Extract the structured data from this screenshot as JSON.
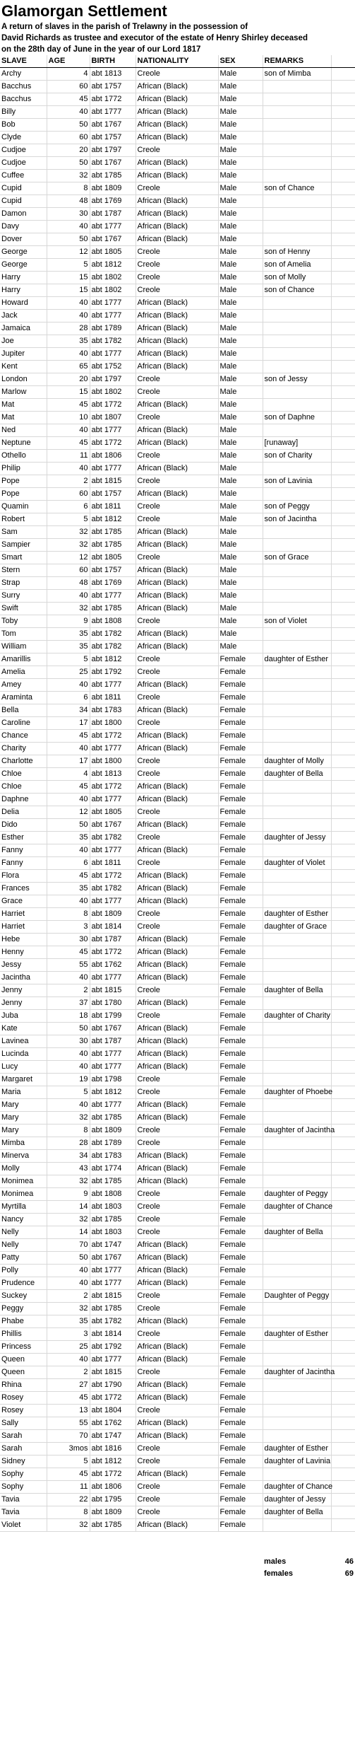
{
  "title": "Glamorgan Settlement",
  "subtitle_lines": [
    "A return of slaves in the parish of Trelawny in the possession of",
    "David Richards as trustee and executor of the estate of Henry Shirley deceased",
    "on the 28th day of June in the year of our Lord 1817"
  ],
  "columns": [
    "SLAVE",
    "AGE",
    "BIRTH",
    "NATIONALITY",
    "SEX",
    "REMARKS"
  ],
  "rows": [
    [
      "Archy",
      "4",
      "abt 1813",
      "Creole",
      "Male",
      "son of Mimba"
    ],
    [
      "Bacchus",
      "60",
      "abt 1757",
      "African (Black)",
      "Male",
      ""
    ],
    [
      "Bacchus",
      "45",
      "abt 1772",
      "African (Black)",
      "Male",
      ""
    ],
    [
      "Billy",
      "40",
      "abt 1777",
      "African (Black)",
      "Male",
      ""
    ],
    [
      "Bob",
      "50",
      "abt 1767",
      "African (Black)",
      "Male",
      ""
    ],
    [
      "Clyde",
      "60",
      "abt 1757",
      "African (Black)",
      "Male",
      ""
    ],
    [
      "Cudjoe",
      "20",
      "abt 1797",
      "Creole",
      "Male",
      ""
    ],
    [
      "Cudjoe",
      "50",
      "abt 1767",
      "African (Black)",
      "Male",
      ""
    ],
    [
      "Cuffee",
      "32",
      "abt 1785",
      "African (Black)",
      "Male",
      ""
    ],
    [
      "Cupid",
      "8",
      "abt 1809",
      "Creole",
      "Male",
      "son of Chance"
    ],
    [
      "Cupid",
      "48",
      "abt 1769",
      "African (Black)",
      "Male",
      ""
    ],
    [
      "Damon",
      "30",
      "abt 1787",
      "African (Black)",
      "Male",
      ""
    ],
    [
      "Davy",
      "40",
      "abt 1777",
      "African (Black)",
      "Male",
      ""
    ],
    [
      "Dover",
      "50",
      "abt 1767",
      "African (Black)",
      "Male",
      ""
    ],
    [
      "George",
      "12",
      "abt 1805",
      "Creole",
      "Male",
      "son of Henny"
    ],
    [
      "George",
      "5",
      "abt 1812",
      "Creole",
      "Male",
      "son of Amelia"
    ],
    [
      "Harry",
      "15",
      "abt 1802",
      "Creole",
      "Male",
      "son of Molly"
    ],
    [
      "Harry",
      "15",
      "abt 1802",
      "Creole",
      "Male",
      "son of Chance"
    ],
    [
      "Howard",
      "40",
      "abt 1777",
      "African (Black)",
      "Male",
      ""
    ],
    [
      "Jack",
      "40",
      "abt 1777",
      "African (Black)",
      "Male",
      ""
    ],
    [
      "Jamaica",
      "28",
      "abt 1789",
      "African (Black)",
      "Male",
      ""
    ],
    [
      "Joe",
      "35",
      "abt 1782",
      "African (Black)",
      "Male",
      ""
    ],
    [
      "Jupiter",
      "40",
      "abt 1777",
      "African (Black)",
      "Male",
      ""
    ],
    [
      "Kent",
      "65",
      "abt 1752",
      "African (Black)",
      "Male",
      ""
    ],
    [
      "London",
      "20",
      "abt 1797",
      "Creole",
      "Male",
      "son of Jessy"
    ],
    [
      "Marlow",
      "15",
      "abt 1802",
      "Creole",
      "Male",
      ""
    ],
    [
      "Mat",
      "45",
      "abt 1772",
      "African (Black)",
      "Male",
      ""
    ],
    [
      "Mat",
      "10",
      "abt 1807",
      "Creole",
      "Male",
      "son of Daphne"
    ],
    [
      "Ned",
      "40",
      "abt 1777",
      "African (Black)",
      "Male",
      ""
    ],
    [
      "Neptune",
      "45",
      "abt 1772",
      "African (Black)",
      "Male",
      "[runaway]"
    ],
    [
      "Othello",
      "11",
      "abt 1806",
      "Creole",
      "Male",
      "son of Charity"
    ],
    [
      "Philip",
      "40",
      "abt 1777",
      "African (Black)",
      "Male",
      ""
    ],
    [
      "Pope",
      "2",
      "abt 1815",
      "Creole",
      "Male",
      "son of Lavinia"
    ],
    [
      "Pope",
      "60",
      "abt 1757",
      "African (Black)",
      "Male",
      ""
    ],
    [
      "Quamin",
      "6",
      "abt 1811",
      "Creole",
      "Male",
      "son of Peggy"
    ],
    [
      "Robert",
      "5",
      "abt 1812",
      "Creole",
      "Male",
      "son of Jacintha"
    ],
    [
      "Sam",
      "32",
      "abt 1785",
      "African (Black)",
      "Male",
      ""
    ],
    [
      "Sampier",
      "32",
      "abt 1785",
      "African (Black)",
      "Male",
      ""
    ],
    [
      "Smart",
      "12",
      "abt 1805",
      "Creole",
      "Male",
      "son of Grace"
    ],
    [
      "Stern",
      "60",
      "abt 1757",
      "African (Black)",
      "Male",
      ""
    ],
    [
      "Strap",
      "48",
      "abt 1769",
      "African (Black)",
      "Male",
      ""
    ],
    [
      "Surry",
      "40",
      "abt 1777",
      "African (Black)",
      "Male",
      ""
    ],
    [
      "Swift",
      "32",
      "abt 1785",
      "African (Black)",
      "Male",
      ""
    ],
    [
      "Toby",
      "9",
      "abt 1808",
      "Creole",
      "Male",
      "son of Violet"
    ],
    [
      "Tom",
      "35",
      "abt 1782",
      "African (Black)",
      "Male",
      ""
    ],
    [
      "William",
      "35",
      "abt 1782",
      "African (Black)",
      "Male",
      ""
    ],
    [
      "Amarillis",
      "5",
      "abt 1812",
      "Creole",
      "Female",
      "daughter of Esther"
    ],
    [
      "Amelia",
      "25",
      "abt 1792",
      "Creole",
      "Female",
      ""
    ],
    [
      "Amey",
      "40",
      "abt 1777",
      "African (Black)",
      "Female",
      ""
    ],
    [
      "Araminta",
      "6",
      "abt 1811",
      "Creole",
      "Female",
      ""
    ],
    [
      "Bella",
      "34",
      "abt 1783",
      "African (Black)",
      "Female",
      ""
    ],
    [
      "Caroline",
      "17",
      "abt 1800",
      "Creole",
      "Female",
      ""
    ],
    [
      "Chance",
      "45",
      "abt 1772",
      "African (Black)",
      "Female",
      ""
    ],
    [
      "Charity",
      "40",
      "abt 1777",
      "African (Black)",
      "Female",
      ""
    ],
    [
      "Charlotte",
      "17",
      "abt 1800",
      "Creole",
      "Female",
      "daughter of Molly"
    ],
    [
      "Chloe",
      "4",
      "abt 1813",
      "Creole",
      "Female",
      "daughter of Bella"
    ],
    [
      "Chloe",
      "45",
      "abt 1772",
      "African (Black)",
      "Female",
      ""
    ],
    [
      "Daphne",
      "40",
      "abt 1777",
      "African (Black)",
      "Female",
      ""
    ],
    [
      "Delia",
      "12",
      "abt 1805",
      "Creole",
      "Female",
      ""
    ],
    [
      "Dido",
      "50",
      "abt 1767",
      "African (Black)",
      "Female",
      ""
    ],
    [
      "Esther",
      "35",
      "abt 1782",
      "Creole",
      "Female",
      "daughter of Jessy"
    ],
    [
      "Fanny",
      "40",
      "abt 1777",
      "African (Black)",
      "Female",
      ""
    ],
    [
      "Fanny",
      "6",
      "abt 1811",
      "Creole",
      "Female",
      "daughter of Violet"
    ],
    [
      "Flora",
      "45",
      "abt 1772",
      "African (Black)",
      "Female",
      ""
    ],
    [
      "Frances",
      "35",
      "abt 1782",
      "African (Black)",
      "Female",
      ""
    ],
    [
      "Grace",
      "40",
      "abt 1777",
      "African (Black)",
      "Female",
      ""
    ],
    [
      "Harriet",
      "8",
      "abt 1809",
      "Creole",
      "Female",
      "daughter of Esther"
    ],
    [
      "Harriet",
      "3",
      "abt 1814",
      "Creole",
      "Female",
      "daughter of Grace"
    ],
    [
      "Hebe",
      "30",
      "abt 1787",
      "African (Black)",
      "Female",
      ""
    ],
    [
      "Henny",
      "45",
      "abt 1772",
      "African (Black)",
      "Female",
      ""
    ],
    [
      "Jessy",
      "55",
      "abt 1762",
      "African (Black)",
      "Female",
      ""
    ],
    [
      "Jacintha",
      "40",
      "abt 1777",
      "African (Black)",
      "Female",
      ""
    ],
    [
      "Jenny",
      "2",
      "abt 1815",
      "Creole",
      "Female",
      "daughter of Bella"
    ],
    [
      "Jenny",
      "37",
      "abt 1780",
      "African (Black)",
      "Female",
      ""
    ],
    [
      "Juba",
      "18",
      "abt 1799",
      "Creole",
      "Female",
      "daughter of Charity"
    ],
    [
      "Kate",
      "50",
      "abt 1767",
      "African (Black)",
      "Female",
      ""
    ],
    [
      "Lavinea",
      "30",
      "abt 1787",
      "African (Black)",
      "Female",
      ""
    ],
    [
      "Lucinda",
      "40",
      "abt 1777",
      "African (Black)",
      "Female",
      ""
    ],
    [
      "Lucy",
      "40",
      "abt 1777",
      "African (Black)",
      "Female",
      ""
    ],
    [
      "Margaret",
      "19",
      "abt 1798",
      "Creole",
      "Female",
      ""
    ],
    [
      "Maria",
      "5",
      "abt 1812",
      "Creole",
      "Female",
      "daughter of Phoebe"
    ],
    [
      "Mary",
      "40",
      "abt 1777",
      "African (Black)",
      "Female",
      ""
    ],
    [
      "Mary",
      "32",
      "abt 1785",
      "African (Black)",
      "Female",
      ""
    ],
    [
      "Mary",
      "8",
      "abt 1809",
      "Creole",
      "Female",
      "daughter of Jacintha"
    ],
    [
      "Mimba",
      "28",
      "abt 1789",
      "Creole",
      "Female",
      ""
    ],
    [
      "Minerva",
      "34",
      "abt 1783",
      "African (Black)",
      "Female",
      ""
    ],
    [
      "Molly",
      "43",
      "abt 1774",
      "African (Black)",
      "Female",
      ""
    ],
    [
      "Monimea",
      "32",
      "abt 1785",
      "African (Black)",
      "Female",
      ""
    ],
    [
      "Monimea",
      "9",
      "abt 1808",
      "Creole",
      "Female",
      "daughter of Peggy"
    ],
    [
      "Myrtilla",
      "14",
      "abt 1803",
      "Creole",
      "Female",
      "daughter of Chance"
    ],
    [
      "Nancy",
      "32",
      "abt 1785",
      "Creole",
      "Female",
      ""
    ],
    [
      "Nelly",
      "14",
      "abt 1803",
      "Creole",
      "Female",
      "daughter of Bella"
    ],
    [
      "Nelly",
      "70",
      "abt 1747",
      "African (Black)",
      "Female",
      ""
    ],
    [
      "Patty",
      "50",
      "abt 1767",
      "African (Black)",
      "Female",
      ""
    ],
    [
      "Polly",
      "40",
      "abt 1777",
      "African (Black)",
      "Female",
      ""
    ],
    [
      "Prudence",
      "40",
      "abt 1777",
      "African (Black)",
      "Female",
      ""
    ],
    [
      "Suckey",
      "2",
      "abt 1815",
      "Creole",
      "Female",
      "Daughter of Peggy"
    ],
    [
      "Peggy",
      "32",
      "abt 1785",
      "Creole",
      "Female",
      ""
    ],
    [
      "Phabe",
      "35",
      "abt 1782",
      "African (Black)",
      "Female",
      ""
    ],
    [
      "Phillis",
      "3",
      "abt 1814",
      "Creole",
      "Female",
      "daughter of Esther"
    ],
    [
      "Princess",
      "25",
      "abt 1792",
      "African (Black)",
      "Female",
      ""
    ],
    [
      "Queen",
      "40",
      "abt 1777",
      "African (Black)",
      "Female",
      ""
    ],
    [
      "Queen",
      "2",
      "abt 1815",
      "Creole",
      "Female",
      "daughter of Jacintha"
    ],
    [
      "Rhina",
      "27",
      "abt 1790",
      "African (Black)",
      "Female",
      ""
    ],
    [
      "Rosey",
      "45",
      "abt 1772",
      "African (Black)",
      "Female",
      ""
    ],
    [
      "Rosey",
      "13",
      "abt 1804",
      "Creole",
      "Female",
      ""
    ],
    [
      "Sally",
      "55",
      "abt 1762",
      "African (Black)",
      "Female",
      ""
    ],
    [
      "Sarah",
      "70",
      "abt 1747",
      "African (Black)",
      "Female",
      ""
    ],
    [
      "Sarah",
      "3mos",
      "abt 1816",
      "Creole",
      "Female",
      "daughter of Esther"
    ],
    [
      "Sidney",
      "5",
      "abt 1812",
      "Creole",
      "Female",
      "daughter of Lavinia"
    ],
    [
      "Sophy",
      "45",
      "abt 1772",
      "African (Black)",
      "Female",
      ""
    ],
    [
      "Sophy",
      "11",
      "abt 1806",
      "Creole",
      "Female",
      "daughter of Chance"
    ],
    [
      "Tavia",
      "22",
      "abt 1795",
      "Creole",
      "Female",
      "daughter of Jessy"
    ],
    [
      "Tavia",
      "8",
      "abt 1809",
      "Creole",
      "Female",
      "daughter of Bella"
    ],
    [
      "Violet",
      "32",
      "abt 1785",
      "African (Black)",
      "Female",
      ""
    ]
  ],
  "totals": [
    {
      "label": "males",
      "value": "46"
    },
    {
      "label": "females",
      "value": "69"
    }
  ]
}
